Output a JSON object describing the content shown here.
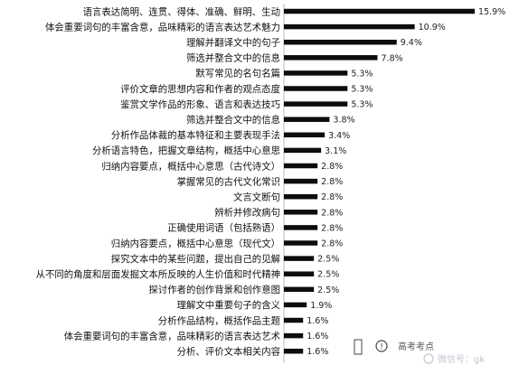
{
  "chart_data": {
    "type": "bar",
    "orientation": "horizontal",
    "categories": [
      "语言表达简明、连贯、得体、准确、鲜明、生动",
      "体会重要词句的丰富含意，品味精彩的语言表达艺术魅力",
      "理解并翻译文中的句子",
      "筛选并整合文中的信息",
      "默写常见的名句名篇",
      "评价文章的思想内容和作者的观点态度",
      "鉴赏文学作品的形象、语言和表达技巧",
      "筛选并整合文中的信息",
      "分析作品体裁的基本特征和主要表现手法",
      "分析语言特色，把握文章结构，概括中心意思",
      "归纳内容要点，概括中心意思（古代诗文）",
      "掌握常见的古代文化常识",
      "文言文断句",
      "辨析并修改病句",
      "正确使用词语（包括熟语）",
      "归纳内容要点，概括中心意思（现代文）",
      "探究文本中的某些问题，提出自己的见解",
      "从不同的角度和层面发掘文本所反映的人生价值和时代精神",
      "探讨作者的创作背景和创作意图",
      "理解文中重要句子的含义",
      "分析作品结构，概括作品主题",
      "体会重要词句的丰富含意，品味精彩的语言表达艺术",
      "分析、评价文本相关内容"
    ],
    "values": [
      15.9,
      10.9,
      9.4,
      7.8,
      5.3,
      5.3,
      5.3,
      3.8,
      3.4,
      3.1,
      2.8,
      2.8,
      2.8,
      2.8,
      2.8,
      2.8,
      2.5,
      2.5,
      2.5,
      1.9,
      1.6,
      1.6,
      1.6
    ],
    "value_labels": [
      "15.9%",
      "10.9%",
      "9.4%",
      "7.8%",
      "5.3%",
      "5.3%",
      "5.3%",
      "3.8%",
      "3.4%",
      "3.1%",
      "2.8%",
      "2.8%",
      "2.8%",
      "2.8%",
      "2.8%",
      "2.8%",
      "2.5%",
      "2.5%",
      "2.5%",
      "1.9%",
      "1.6%",
      "1.6%",
      "1.6%"
    ],
    "xlim": [
      0,
      16.6
    ],
    "grid": false,
    "bar_color": "#0d0d0d"
  },
  "overlay": {
    "legend_text": "高考考点",
    "watermark_text": "微信号：gk"
  }
}
